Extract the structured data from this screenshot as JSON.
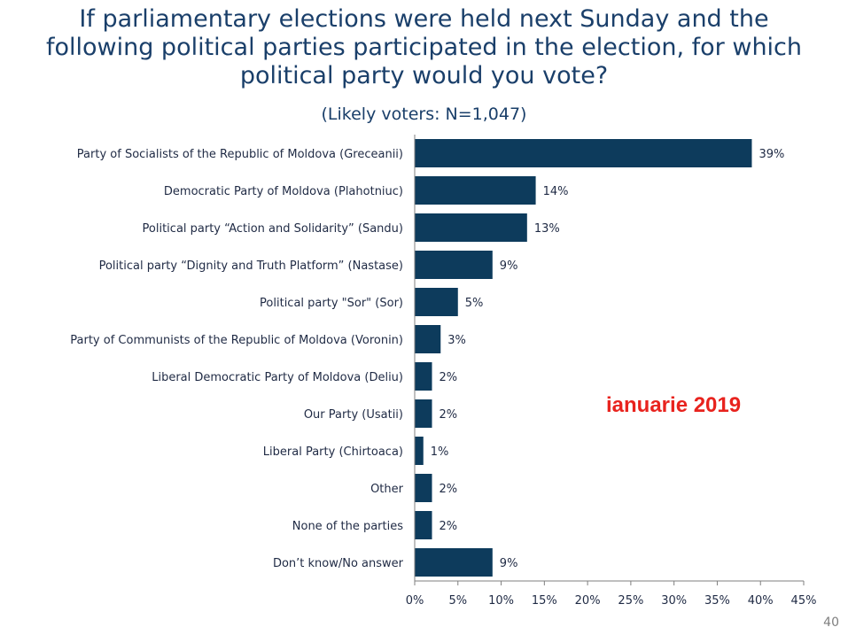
{
  "title_lines": [
    "If parliamentary elections were held next Sunday and the",
    "following political parties participated in the election, for which",
    "political party would you vote?"
  ],
  "subtitle": "(Likely voters: N=1,047)",
  "annotation": "ianuarie 2019",
  "page_number": "40",
  "colors": {
    "bar": "#0d3b5c",
    "title": "#1a3f6a",
    "annotation": "#e8231e"
  },
  "chart_data": {
    "type": "bar",
    "orientation": "horizontal",
    "categories": [
      "Party of Socialists of the Republic of Moldova (Greceanii)",
      "Democratic Party of Moldova (Plahotniuc)",
      "Political party “Action and Solidarity” (Sandu)",
      "Political party “Dignity and Truth Platform” (Nastase)",
      "Political party \"Sor\" (Sor)",
      "Party of Communists of the Republic of Moldova (Voronin)",
      "Liberal Democratic Party of Moldova (Deliu)",
      "Our Party (Usatii)",
      "Liberal Party (Chirtoaca)",
      "Other",
      "None of the parties",
      "Don’t know/No answer"
    ],
    "values": [
      39,
      14,
      13,
      9,
      5,
      3,
      2,
      2,
      1,
      2,
      2,
      9
    ],
    "value_labels": [
      "39%",
      "14%",
      "13%",
      "9%",
      "5%",
      "3%",
      "2%",
      "2%",
      "1%",
      "2%",
      "2%",
      "9%"
    ],
    "xlim": [
      0,
      45
    ],
    "xticks": [
      0,
      5,
      10,
      15,
      20,
      25,
      30,
      35,
      40,
      45
    ],
    "xtick_labels": [
      "0%",
      "5%",
      "10%",
      "15%",
      "20%",
      "25%",
      "30%",
      "35%",
      "40%",
      "45%"
    ],
    "grid": false,
    "legend": "none"
  }
}
